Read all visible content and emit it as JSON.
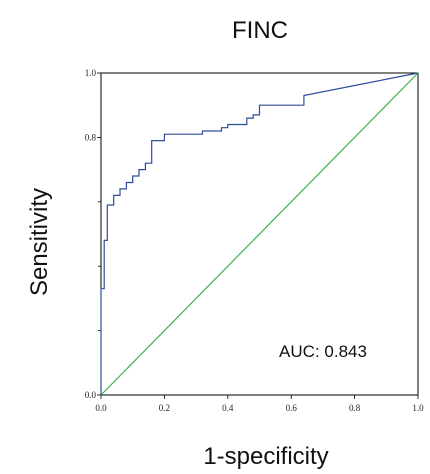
{
  "chart_data": {
    "type": "line",
    "title": "FINC",
    "xlabel": "1-specificity",
    "ylabel": "Sensitivity",
    "xlim": [
      0,
      1
    ],
    "ylim": [
      0,
      1
    ],
    "x_ticks": [
      "0.0",
      "0.2",
      "0.4",
      "0.6",
      "0.8",
      "1.0"
    ],
    "y_ticks": [
      "0.0",
      "0.8",
      "1.0"
    ],
    "annotation": "AUC: 0.843",
    "grid": false,
    "colors": {
      "roc": "#2e4d9c",
      "reference": "#3cb44b",
      "frame": "#000000"
    },
    "series": [
      {
        "x": [
          0.0,
          0.0,
          0.01,
          0.01,
          0.02,
          0.02,
          0.04,
          0.04,
          0.06,
          0.06,
          0.08,
          0.08,
          0.1,
          0.1,
          0.12,
          0.12,
          0.14,
          0.14,
          0.16,
          0.16,
          0.2,
          0.2,
          0.32,
          0.32,
          0.38,
          0.38,
          0.4,
          0.4,
          0.46,
          0.46,
          0.48,
          0.48,
          0.5,
          0.5,
          0.64,
          0.64,
          1.0
        ],
        "y": [
          0.0,
          0.33,
          0.33,
          0.48,
          0.48,
          0.59,
          0.59,
          0.62,
          0.62,
          0.64,
          0.64,
          0.66,
          0.66,
          0.68,
          0.68,
          0.7,
          0.7,
          0.72,
          0.72,
          0.79,
          0.79,
          0.81,
          0.81,
          0.82,
          0.82,
          0.83,
          0.83,
          0.84,
          0.84,
          0.86,
          0.86,
          0.87,
          0.87,
          0.9,
          0.9,
          0.93,
          1.0
        ]
      },
      {
        "x": [
          0,
          1
        ],
        "y": [
          0,
          1
        ]
      }
    ]
  }
}
